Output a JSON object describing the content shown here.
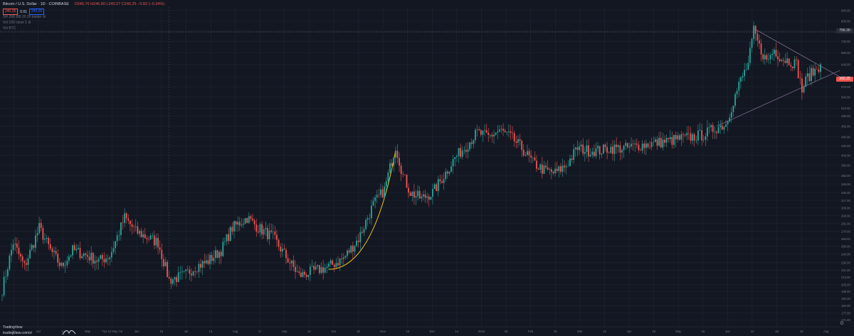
{
  "header": {
    "symbol": "Bitcoin / U.S. Dollar · 1D · COINBASE",
    "ohlc": "O246.76 H246.80 L240.27 C240.25 −0.82 (−0.34%)",
    "sell": "240.25",
    "spread": "0.01",
    "buy": "240.26",
    "ind1": "SR 20D BB 20 20 kaster ⚙",
    "ind2": "Vol 100 close 1 ⚙",
    "ind3": "Vol   BTC"
  },
  "branding": {
    "logo_text": "TradingView",
    "caption": "tradingview.com/x/"
  },
  "price_tags": {
    "current": "756.30",
    "last": "260.25"
  },
  "colors": {
    "background": "#131722",
    "grid": "#1f2937",
    "up": "#26a69a",
    "down": "#ef5350",
    "curve": "#f5c518",
    "trendline": "#7a6a8a"
  },
  "chart_data": {
    "type": "candlestick",
    "title": "",
    "y_ticks": [
      "845.00",
      "800.00",
      "760.00",
      "720.00",
      "680.00",
      "640.00",
      "600.00",
      "570.00",
      "540.00",
      "510.00",
      "490.00",
      "465.00",
      "440.00",
      "420.00",
      "400.00",
      "380.00",
      "360.00",
      "345.00",
      "330.00",
      "317.00",
      "305.00",
      "293.00",
      "281.00",
      "270.00",
      "260.00",
      "250.00",
      "240.00",
      "230.00",
      "221.00",
      "213.00",
      "205.00",
      "198.00",
      "191.00",
      "184.00",
      "177.00",
      "171.00"
    ],
    "x_ticks": [
      "16",
      "Apr",
      "13",
      "May",
      "Tue 12 May '15",
      "Jun",
      "15",
      "Jul",
      "13",
      "Aug",
      "17",
      "Sep",
      "14",
      "Oct",
      "19",
      "Nov",
      "16",
      "Dec",
      "14",
      "2016",
      "18",
      "Feb",
      "15",
      "Mar",
      "14",
      "Apr",
      "18",
      "May",
      "16",
      "Jun",
      "13",
      "Jul",
      "18",
      "Aug"
    ],
    "ylim": [
      165,
      860
    ],
    "log_scale": true,
    "grid": true,
    "series": [
      {
        "name": "",
        "anchors": [
          [
            0,
            200
          ],
          [
            6,
            255
          ],
          [
            12,
            225
          ],
          [
            20,
            275
          ],
          [
            26,
            245
          ],
          [
            32,
            225
          ],
          [
            38,
            245
          ],
          [
            44,
            240
          ],
          [
            52,
            232
          ],
          [
            58,
            238
          ],
          [
            66,
            290
          ],
          [
            72,
            270
          ],
          [
            78,
            262
          ],
          [
            84,
            255
          ],
          [
            90,
            210
          ],
          [
            98,
            215
          ],
          [
            104,
            225
          ],
          [
            110,
            230
          ],
          [
            118,
            245
          ],
          [
            124,
            275
          ],
          [
            132,
            290
          ],
          [
            138,
            275
          ],
          [
            146,
            262
          ],
          [
            152,
            240
          ],
          [
            160,
            215
          ],
          [
            168,
            220
          ],
          [
            176,
            225
          ],
          [
            184,
            235
          ],
          [
            192,
            260
          ],
          [
            200,
            310
          ],
          [
            206,
            335
          ],
          [
            212,
            420
          ],
          [
            216,
            360
          ],
          [
            220,
            330
          ],
          [
            226,
            320
          ],
          [
            232,
            330
          ],
          [
            238,
            360
          ],
          [
            244,
            395
          ],
          [
            250,
            420
          ],
          [
            256,
            450
          ],
          [
            262,
            440
          ],
          [
            268,
            455
          ],
          [
            274,
            440
          ],
          [
            280,
            415
          ],
          [
            286,
            385
          ],
          [
            292,
            370
          ],
          [
            298,
            365
          ],
          [
            304,
            380
          ],
          [
            310,
            415
          ],
          [
            316,
            410
          ],
          [
            322,
            410
          ],
          [
            328,
            415
          ],
          [
            336,
            415
          ],
          [
            342,
            420
          ],
          [
            350,
            425
          ],
          [
            358,
            430
          ],
          [
            364,
            435
          ],
          [
            372,
            440
          ],
          [
            378,
            445
          ],
          [
            384,
            460
          ],
          [
            390,
            470
          ],
          [
            394,
            530
          ],
          [
            398,
            590
          ],
          [
            402,
            640
          ],
          [
            405,
            760
          ],
          [
            408,
            700
          ],
          [
            412,
            650
          ],
          [
            416,
            690
          ],
          [
            420,
            660
          ],
          [
            425,
            650
          ],
          [
            428,
            640
          ],
          [
            431,
            560
          ],
          [
            434,
            600
          ],
          [
            438,
            620
          ],
          [
            441,
            640
          ]
        ]
      }
    ]
  }
}
